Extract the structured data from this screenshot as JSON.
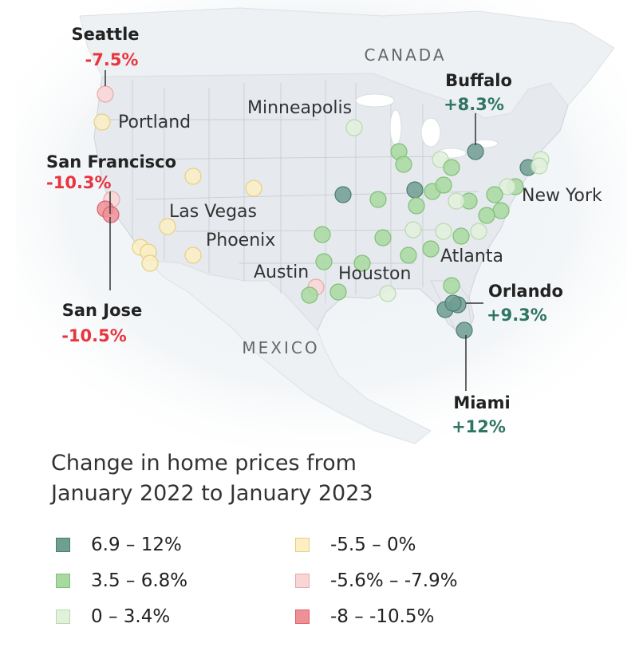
{
  "map": {
    "regions": [
      {
        "label": "CANADA"
      },
      {
        "label": "MEXICO"
      }
    ],
    "cities": [
      {
        "label": "Portland"
      },
      {
        "label": "Minneapolis"
      },
      {
        "label": "Las Vegas"
      },
      {
        "label": "Phoenix"
      },
      {
        "label": "Austin"
      },
      {
        "label": "Houston"
      },
      {
        "label": "Atlanta"
      },
      {
        "label": "New York"
      }
    ],
    "callouts": [
      {
        "name": "Seattle",
        "value": "-7.5%",
        "color": "#e8343f"
      },
      {
        "name": "San Francisco",
        "value": "-10.3%",
        "color": "#e8343f"
      },
      {
        "name": "San Jose",
        "value": "-10.5%",
        "color": "#e8343f"
      },
      {
        "name": "Buffalo",
        "value": "+8.3%",
        "color": "#2f7563"
      },
      {
        "name": "Orlando",
        "value": "+9.3%",
        "color": "#2f7563"
      },
      {
        "name": "Miami",
        "value": "+12%",
        "color": "#2f7563"
      }
    ]
  },
  "legend": {
    "title_line1": "Change in home prices from",
    "title_line2": "January 2022 to January 2023",
    "items": [
      {
        "label": "6.9 – 12%",
        "fill": "#6f9e92",
        "stroke": "#4c7d70"
      },
      {
        "label": "3.5 – 6.8%",
        "fill": "#a8d9a0",
        "stroke": "#7fbf77"
      },
      {
        "label": "0 – 3.4%",
        "fill": "#e2f1dc",
        "stroke": "#b8d8ae"
      },
      {
        "label": "-5.5 – 0%",
        "fill": "#fcefc3",
        "stroke": "#e5cf80"
      },
      {
        "label": "-5.6% – -7.9%",
        "fill": "#f9d6d6",
        "stroke": "#e6aaaa"
      },
      {
        "label": "-8 – -10.5%",
        "fill": "#ef8f96",
        "stroke": "#d9636c"
      }
    ]
  }
}
